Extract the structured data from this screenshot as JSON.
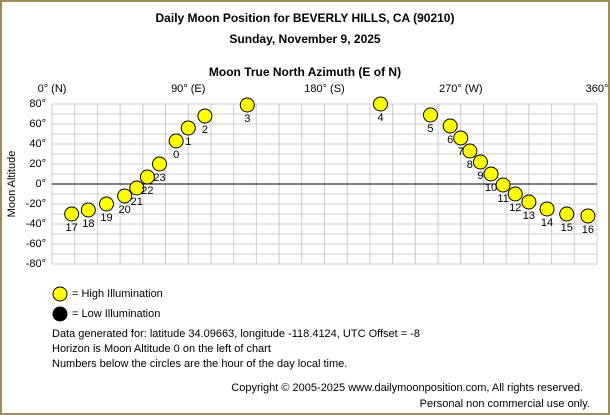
{
  "chart_data": {
    "type": "scatter",
    "title": "Daily Moon Position for BEVERLY HILLS, CA (90210)",
    "subtitle": "Sunday, November 9, 2025",
    "x_label": "Moon True North Azimuth (E of N)",
    "y_label": "Moon Altitude",
    "x": [
      13,
      24,
      36,
      48,
      56,
      63,
      71,
      82,
      90,
      101,
      129,
      217,
      250,
      263,
      270,
      276,
      283,
      290,
      298,
      306,
      315,
      327,
      340,
      354
    ],
    "y": [
      -30,
      -26,
      -20,
      -12,
      -4,
      7,
      20,
      43,
      56,
      68,
      79,
      80,
      69,
      58,
      46,
      33,
      22,
      10,
      -1,
      -10,
      -18,
      -25,
      -30,
      -32
    ],
    "labels": [
      "17",
      "18",
      "19",
      "20",
      "21",
      "22",
      "23",
      "0",
      "1",
      "2",
      "3",
      "4",
      "5",
      "6",
      "7",
      "8",
      "9",
      "10",
      "11",
      "12",
      "13",
      "14",
      "15",
      "16"
    ],
    "color": "#ffff00",
    "xlim": [
      0,
      360
    ],
    "ylim": [
      -80,
      80
    ],
    "xticks": [
      {
        "value": 0,
        "label": "0° (N)"
      },
      {
        "value": 90,
        "label": "90° (E)"
      },
      {
        "value": 180,
        "label": "180° (S)"
      },
      {
        "value": 270,
        "label": "270° (W)"
      },
      {
        "value": 360,
        "label": "360°"
      }
    ],
    "yticks": [
      {
        "value": 80,
        "label": "80°"
      },
      {
        "value": 60,
        "label": "60°"
      },
      {
        "value": 40,
        "label": "40°"
      },
      {
        "value": 20,
        "label": "20°"
      },
      {
        "value": 0,
        "label": "0°"
      },
      {
        "value": -20,
        "label": "-20°"
      },
      {
        "value": -40,
        "label": "-40°"
      },
      {
        "value": -60,
        "label": "-60°"
      },
      {
        "value": -80,
        "label": "-80°"
      }
    ],
    "xgrid": [
      15,
      30,
      45,
      60,
      75,
      105,
      120,
      135,
      150,
      165,
      195,
      210,
      225,
      240,
      255,
      285,
      300,
      315,
      330,
      345
    ],
    "ygrid": [
      70,
      50,
      30,
      10,
      -10,
      -30,
      -50,
      -70
    ],
    "grid": true,
    "legend": [
      {
        "name": "= High Illumination",
        "color": "#ffff00"
      },
      {
        "name": "= Low Illumination",
        "color": "#000000"
      }
    ],
    "notes": [
      "Data generated for: latitude 34.09663, longitude -118.4124, UTC Offset = -8",
      "Horizon is Moon Altitude 0 on the left of chart",
      "Numbers below the circles are the hour of the day local time."
    ],
    "copyright": [
      "Copyright © 2005-2025 www.dailymoonposition.com, All rights reserved.",
      "Personal non commercial use only."
    ]
  }
}
